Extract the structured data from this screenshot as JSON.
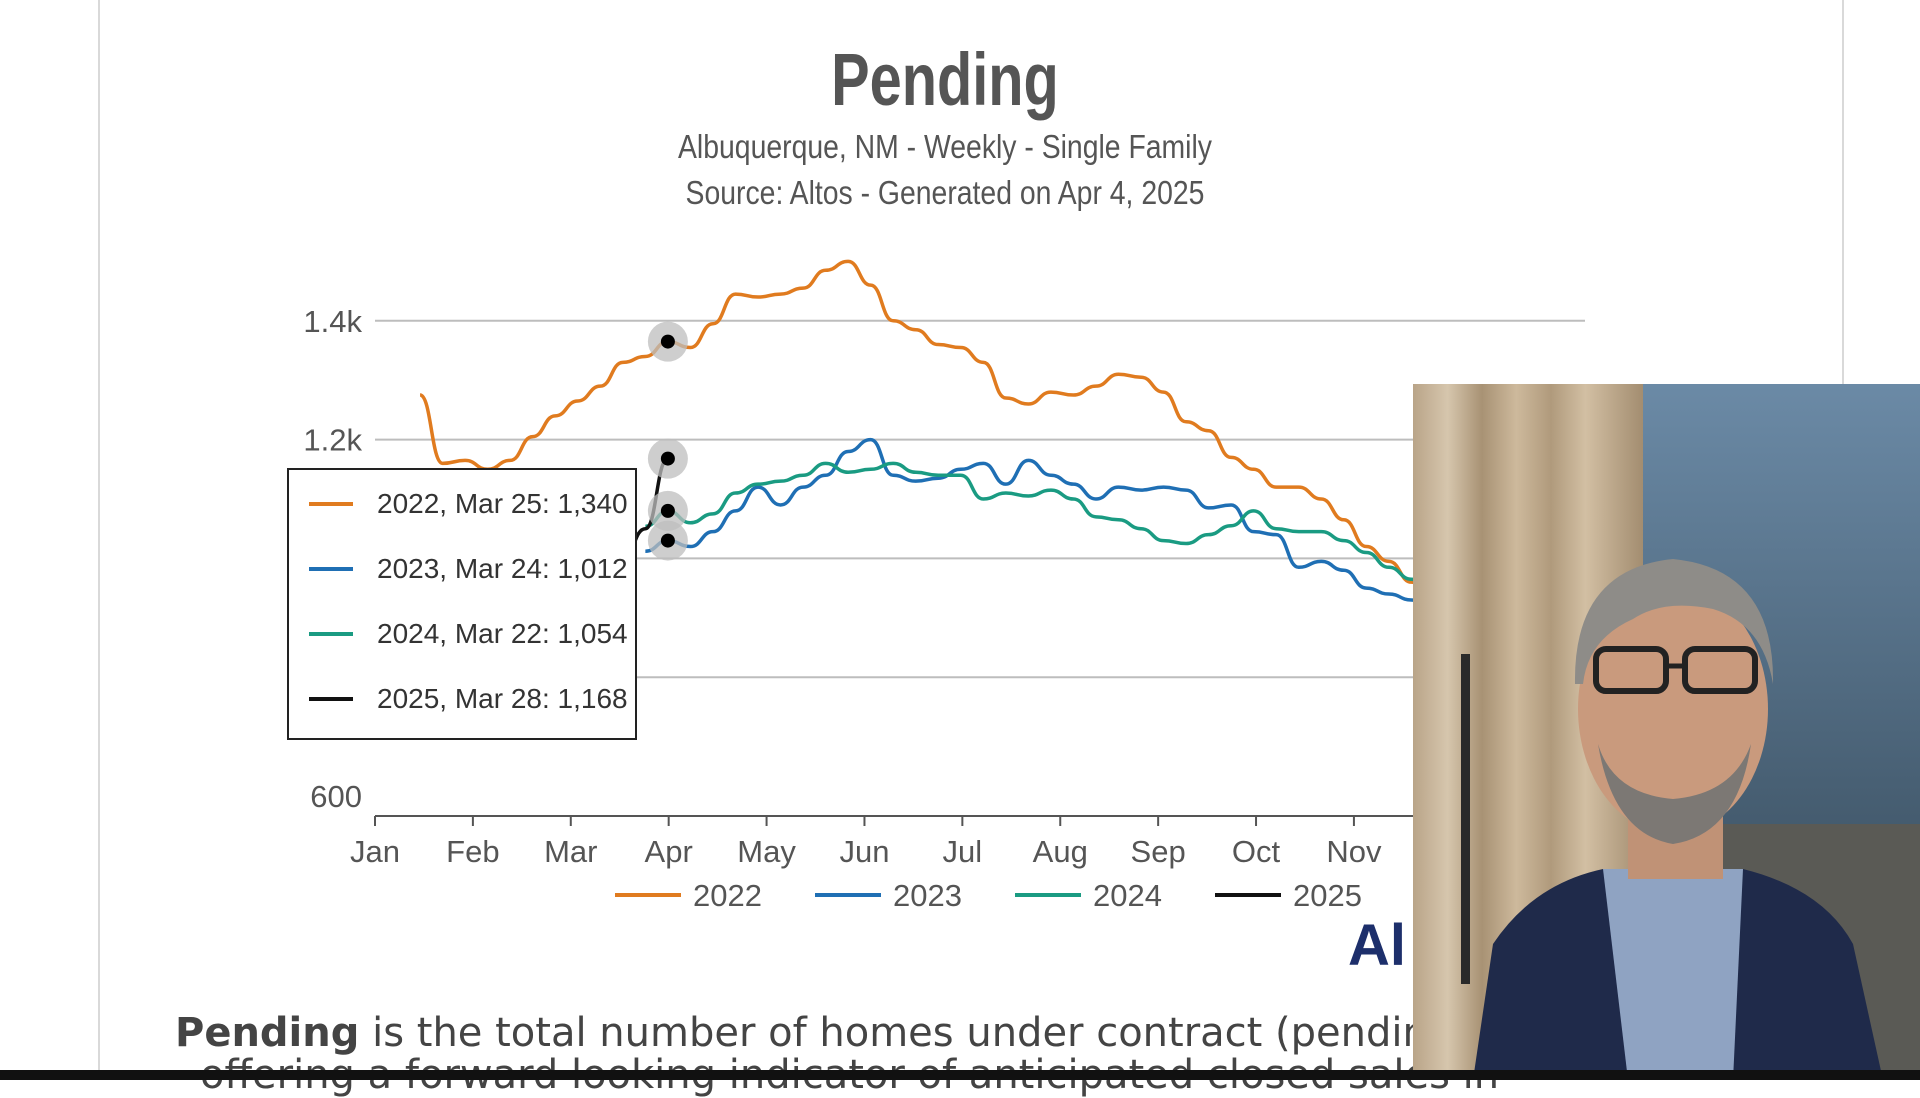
{
  "colors": {
    "2022": "#e07b1f",
    "2023": "#1f6fb4",
    "2024": "#1a9b82",
    "2025": "#111111",
    "grid": "#bdbdbd",
    "axis": "#555555"
  },
  "chart_data": {
    "type": "line",
    "title": "Pending",
    "subtitle_1": "Albuquerque, NM - Weekly - Single Family",
    "subtitle_2": "Source: Altos - Generated on Apr 4, 2025",
    "xlabel": "",
    "ylabel": "",
    "x_ticks": [
      "Jan",
      "Feb",
      "Mar",
      "Apr",
      "May",
      "Jun",
      "Jul",
      "Aug",
      "Sep",
      "Oct",
      "Nov"
    ],
    "y_ticks": [
      "600",
      "1.2k",
      "1.4k"
    ],
    "ylim": [
      600,
      1540
    ],
    "grid": true,
    "legend": [
      "2022",
      "2023",
      "2024",
      "2025"
    ],
    "legend_position": "bottom",
    "series": [
      {
        "name": "2022",
        "weeks": [
          2,
          3,
          4,
          5,
          6,
          7,
          8,
          9,
          10,
          11,
          12,
          13,
          14,
          15,
          16,
          17,
          18,
          19,
          20,
          21,
          22,
          23,
          24,
          25,
          26,
          27,
          28,
          29,
          30,
          31,
          32,
          33,
          34,
          35,
          36,
          37,
          38,
          39,
          40,
          41,
          42,
          43,
          44,
          45,
          46,
          47
        ],
        "values": [
          1275,
          1160,
          1165,
          1150,
          1165,
          1205,
          1240,
          1265,
          1290,
          1330,
          1340,
          1365,
          1355,
          1395,
          1445,
          1440,
          1445,
          1455,
          1485,
          1500,
          1460,
          1400,
          1385,
          1360,
          1355,
          1330,
          1270,
          1260,
          1280,
          1275,
          1290,
          1310,
          1305,
          1280,
          1230,
          1215,
          1170,
          1150,
          1120,
          1120,
          1100,
          1065,
          1020,
          995,
          960,
          935
        ]
      },
      {
        "name": "2023",
        "weeks": [
          12,
          13,
          14,
          15,
          16,
          17,
          18,
          19,
          20,
          21,
          22,
          23,
          24,
          25,
          26,
          27,
          28,
          29,
          30,
          31,
          32,
          33,
          34,
          35,
          36,
          37,
          38,
          39,
          40,
          41,
          42,
          43,
          44,
          45,
          46,
          47
        ],
        "values": [
          1012,
          1030,
          1020,
          1045,
          1080,
          1120,
          1090,
          1120,
          1140,
          1180,
          1200,
          1140,
          1130,
          1135,
          1150,
          1160,
          1125,
          1165,
          1140,
          1125,
          1100,
          1120,
          1115,
          1120,
          1115,
          1085,
          1090,
          1045,
          1040,
          985,
          995,
          980,
          950,
          940,
          930,
          920
        ]
      },
      {
        "name": "2024",
        "weeks": [
          12,
          13,
          14,
          15,
          16,
          17,
          18,
          19,
          20,
          21,
          22,
          23,
          24,
          25,
          26,
          27,
          28,
          29,
          30,
          31,
          32,
          33,
          34,
          35,
          36,
          37,
          38,
          39,
          40,
          41,
          42,
          43,
          44,
          45,
          46,
          47
        ],
        "values": [
          1054,
          1080,
          1060,
          1075,
          1110,
          1125,
          1130,
          1140,
          1160,
          1145,
          1150,
          1160,
          1145,
          1140,
          1140,
          1100,
          1110,
          1105,
          1115,
          1100,
          1070,
          1065,
          1050,
          1030,
          1025,
          1040,
          1055,
          1080,
          1050,
          1045,
          1045,
          1030,
          1010,
          985,
          965,
          945
        ]
      },
      {
        "name": "2025",
        "weeks": [
          11,
          12,
          13
        ],
        "values": [
          1000,
          1050,
          1168
        ]
      }
    ],
    "tooltip": [
      {
        "series": "2022",
        "text": "2022, Mar 25: 1,340"
      },
      {
        "series": "2023",
        "text": "2023, Mar 24: 1,012"
      },
      {
        "series": "2024",
        "text": "2024, Mar 22: 1,054"
      },
      {
        "series": "2025",
        "text": "2025, Mar 28: 1,168"
      }
    ],
    "hover_week": 13
  },
  "description": {
    "bold": "Pending",
    "rest": " is the total number of homes under contract (pending st",
    "line2": "offering a forward looking indicator of anticipated closed sales in"
  },
  "logo_text": "Al"
}
